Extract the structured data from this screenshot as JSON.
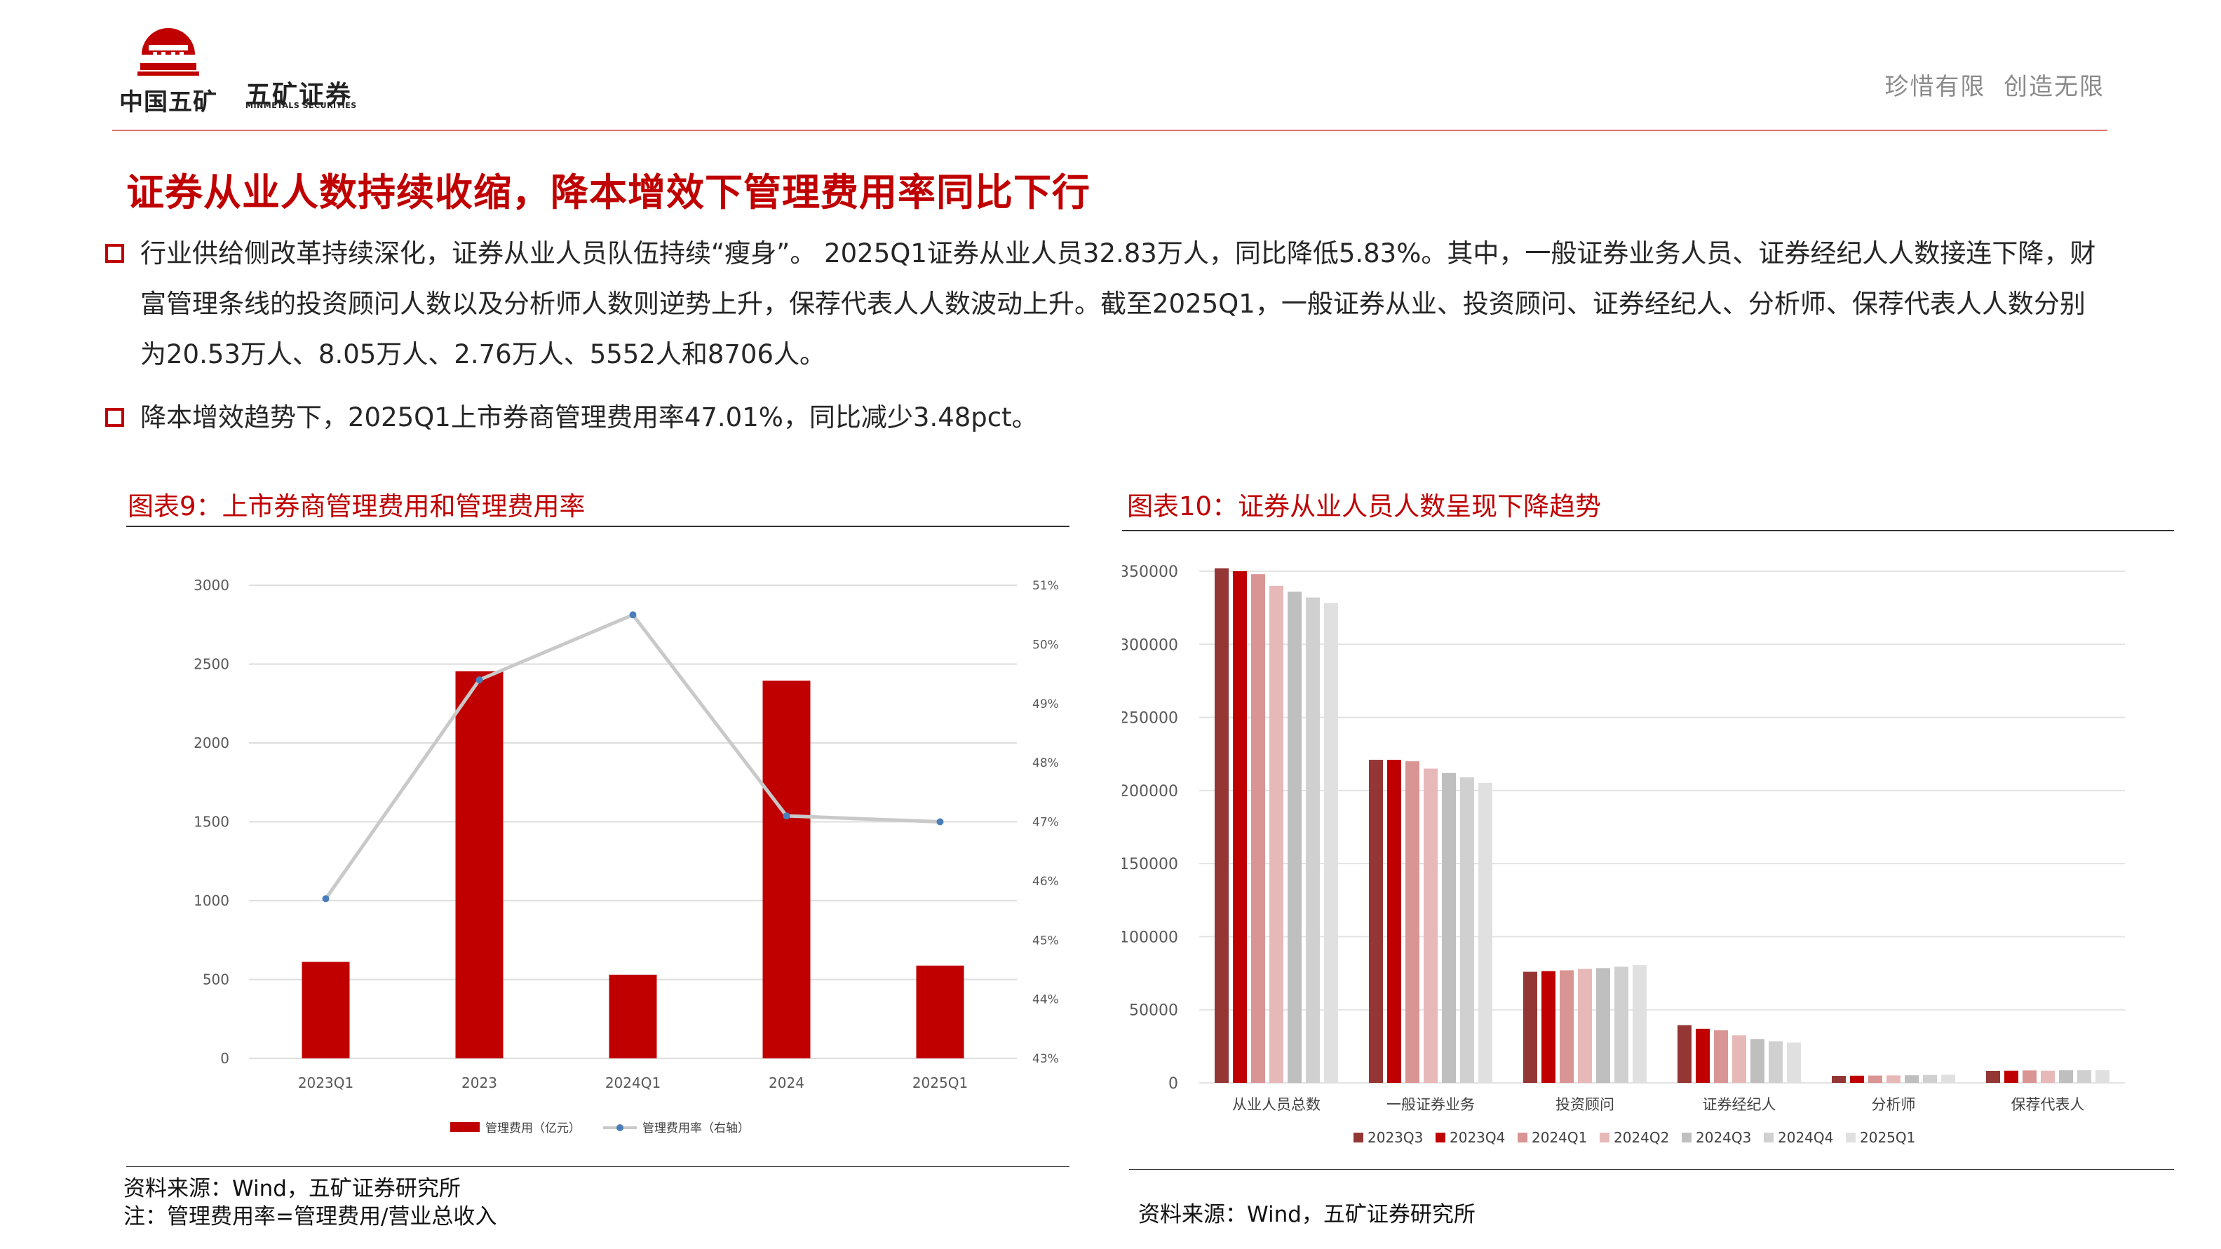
{
  "header": {
    "brand_cn": "五矿证券",
    "brand_en": "MINMETALS SECURITIES",
    "group_name": "中国五矿",
    "slogan": "珍惜有限  创造无限"
  },
  "headline": "证券从业人数持续收缩，降本增效下管理费用率同比下行",
  "bullets": [
    "行业供给侧改革持续深化，证券从业人员队伍持续“瘦身”。 2025Q1证券从业人员32.83万人，同比降低5.83%。其中，一般证券业务人员、证券经纪人人数接连下降，财富管理条线的投资顾问人数以及分析师人数则逆势上升，保荐代表人人数波动上升。截至2025Q1，一般证券从业、投资顾问、证券经纪人、分析师、保荐代表人人数分别为20.53万人、8.05万人、2.76万人、5552人和8706人。",
    "降本增效趋势下，2025Q1上市券商管理费用率47.01%，同比减少3.48pct。"
  ],
  "figure9": {
    "title": "图表9：上市券商管理费用和管理费用率",
    "source": "资料来源：Wind，五矿证券研究所",
    "note": "注：管理费用率=管理费用/营业总收入"
  },
  "figure10": {
    "title": "图表10：证券从业人员人数呈现下降趋势",
    "source": "资料来源：Wind，五矿证券研究所"
  },
  "colors": {
    "accent": "#c00000",
    "rate_line": "#c9c9c9",
    "rate_marker": "#4a7ebb",
    "series10": [
      "#943634",
      "#c00000",
      "#d99594",
      "#e6b9b8",
      "#bfbfbf",
      "#d0d0d0",
      "#e0e0e0"
    ]
  },
  "chart_data": [
    {
      "type": "bar",
      "categories": [
        "2023Q1",
        "2023",
        "2024Q1",
        "2024",
        "2025Q1"
      ],
      "series": [
        {
          "name": "管理费用（亿元）",
          "values": [
            612,
            2455,
            530,
            2395,
            588
          ]
        }
      ],
      "line_series": [
        {
          "name": "管理费用率（右轴）",
          "values": [
            45.7,
            49.4,
            50.5,
            47.1,
            47.0
          ]
        }
      ],
      "ylim": [
        0,
        3000
      ],
      "y_ticks": [
        "0",
        "500",
        "1000",
        "1500",
        "2000",
        "2500",
        "3000"
      ],
      "y2lim": [
        43,
        51
      ],
      "y2_ticks": [
        "43%",
        "44%",
        "45%",
        "46%",
        "47%",
        "48%",
        "49%",
        "50%",
        "51%"
      ],
      "grid": true,
      "legend": "bottom"
    },
    {
      "type": "bar",
      "categories": [
        "从业人员总数",
        "一般证券业务",
        "投资顾问",
        "证券经纪人",
        "分析师",
        "保荐代表人"
      ],
      "series": [
        {
          "name": "2023Q3",
          "values": [
            352000,
            221000,
            76000,
            39500,
            4800,
            8200
          ]
        },
        {
          "name": "2023Q4",
          "values": [
            350000,
            221000,
            76500,
            37000,
            4900,
            8300
          ]
        },
        {
          "name": "2024Q1",
          "values": [
            348000,
            220000,
            77000,
            36000,
            5000,
            8500
          ]
        },
        {
          "name": "2024Q2",
          "values": [
            340000,
            215000,
            78000,
            32500,
            5100,
            8300
          ]
        },
        {
          "name": "2024Q3",
          "values": [
            336000,
            212000,
            78500,
            30000,
            5200,
            8600
          ]
        },
        {
          "name": "2024Q4",
          "values": [
            332000,
            209000,
            79500,
            28500,
            5400,
            8700
          ]
        },
        {
          "name": "2025Q1",
          "values": [
            328300,
            205300,
            80500,
            27600,
            5552,
            8706
          ]
        }
      ],
      "ylim": [
        0,
        350000
      ],
      "y_ticks": [
        "0",
        "50000",
        "100000",
        "150000",
        "200000",
        "250000",
        "300000",
        "350000"
      ],
      "grid": true,
      "legend": "bottom"
    }
  ]
}
